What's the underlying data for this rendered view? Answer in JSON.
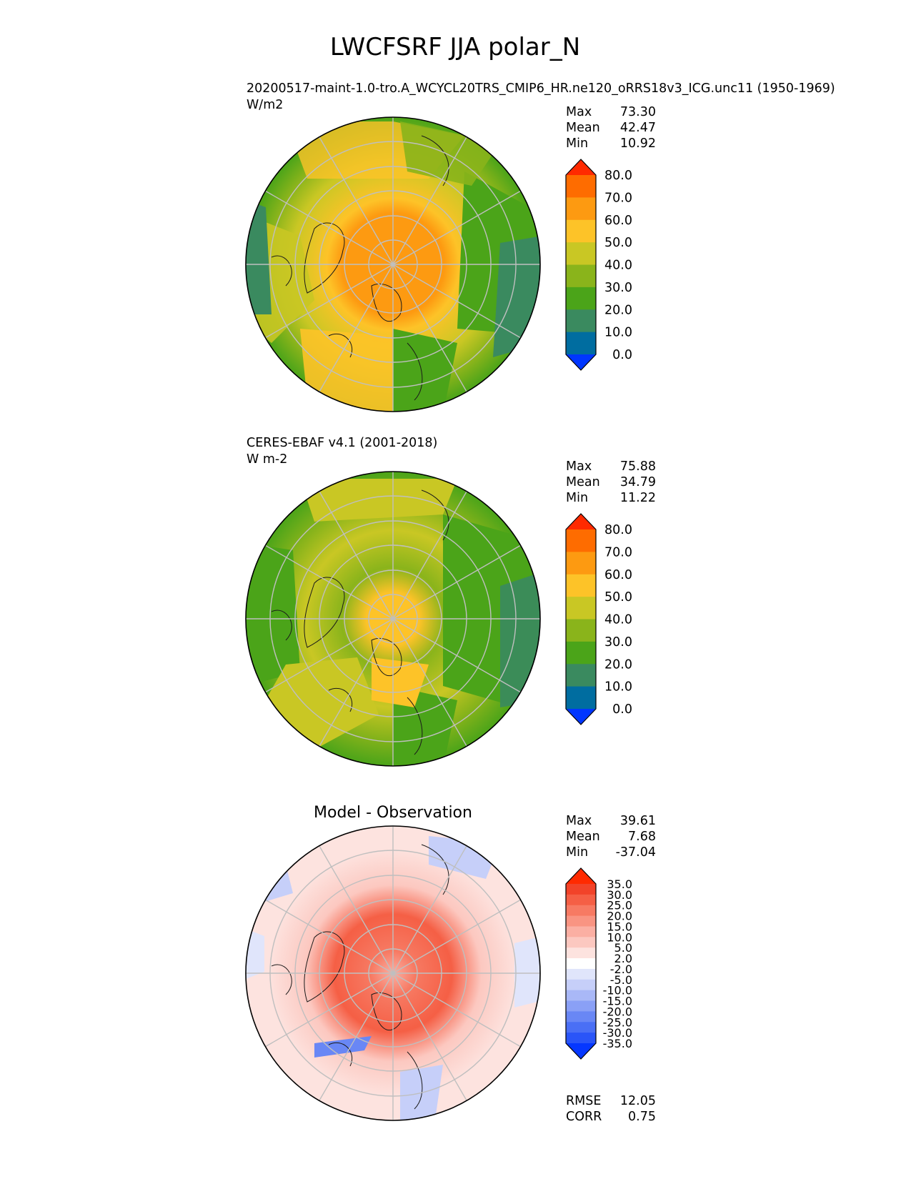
{
  "title": "LWCFSRF JJA polar_N",
  "panels": [
    {
      "id": "test",
      "heading": "",
      "line1": "20200517-maint-1.0-tro.A_WCYCL20TRS_CMIP6_HR.ne120_oRRS18v3_ICG.unc11 (1950-1969)",
      "line2": "W/m2",
      "stats": [
        {
          "label": "Max",
          "value": "73.30"
        },
        {
          "label": "Mean",
          "value": "42.47"
        },
        {
          "label": "Min",
          "value": "10.92"
        }
      ],
      "colorbar": {
        "colors": [
          "#0036ff",
          "#006da0",
          "#3a8a5f",
          "#4ba419",
          "#8ab41b",
          "#c9c724",
          "#fdc328",
          "#fd9a11",
          "#fe6c00",
          "#ff2a00"
        ],
        "labels": [
          "0.0",
          "10.0",
          "20.0",
          "30.0",
          "40.0",
          "50.0",
          "60.0",
          "70.0",
          "80.0"
        ]
      },
      "extra_stats": []
    },
    {
      "id": "ref",
      "heading": "",
      "line1": "CERES-EBAF v4.1 (2001-2018)",
      "line2": "W m-2",
      "stats": [
        {
          "label": "Max",
          "value": "75.88"
        },
        {
          "label": "Mean",
          "value": "34.79"
        },
        {
          "label": "Min",
          "value": "11.22"
        }
      ],
      "colorbar": {
        "colors": [
          "#0036ff",
          "#006da0",
          "#3a8a5f",
          "#4ba419",
          "#8ab41b",
          "#c9c724",
          "#fdc328",
          "#fd9a11",
          "#fe6c00",
          "#ff2a00"
        ],
        "labels": [
          "0.0",
          "10.0",
          "20.0",
          "30.0",
          "40.0",
          "50.0",
          "60.0",
          "70.0",
          "80.0"
        ]
      },
      "extra_stats": []
    },
    {
      "id": "diff",
      "heading": "Model - Observation",
      "line1": "",
      "line2": "",
      "stats": [
        {
          "label": "Max",
          "value": "39.61"
        },
        {
          "label": "Mean",
          "value": "7.68"
        },
        {
          "label": "Min",
          "value": "-37.04"
        }
      ],
      "colorbar": {
        "colors": [
          "#0537ff",
          "#2a55f8",
          "#4a6ff5",
          "#6987f5",
          "#8aa0f6",
          "#a9b8f7",
          "#c6cff9",
          "#e0e5fb",
          "#ffffff",
          "#fde3df",
          "#fcc8c0",
          "#fbafa3",
          "#f99482",
          "#f77a63",
          "#f55f45",
          "#f24329",
          "#ff2a00"
        ],
        "labels": [
          "-35.0",
          "-30.0",
          "-25.0",
          "-20.0",
          "-15.0",
          "-10.0",
          "-5.0",
          "-2.0",
          "2.0",
          "5.0",
          "10.0",
          "15.0",
          "20.0",
          "25.0",
          "30.0",
          "35.0"
        ]
      },
      "extra_stats": [
        {
          "label": "RMSE",
          "value": "12.05"
        },
        {
          "label": "CORR",
          "value": "0.75"
        }
      ]
    }
  ]
}
